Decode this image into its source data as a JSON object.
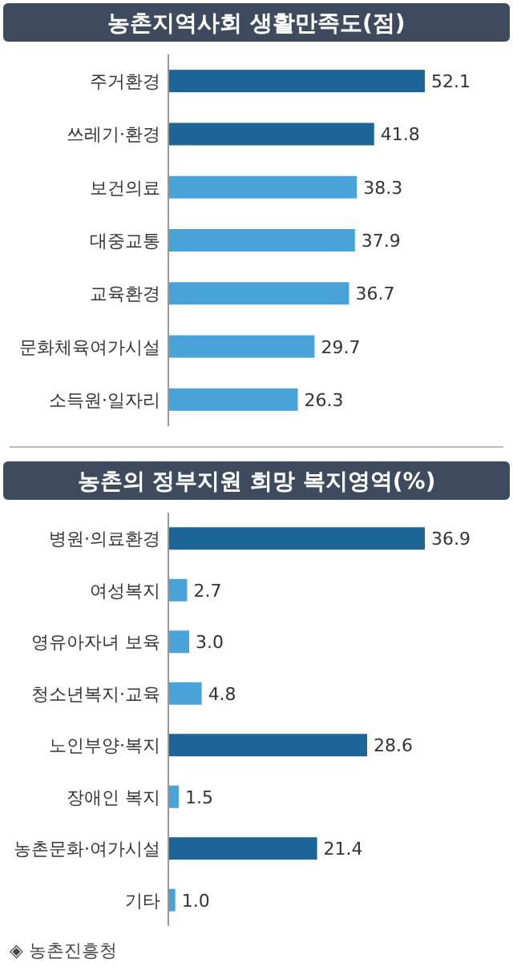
{
  "chart_data": [
    {
      "type": "bar",
      "orientation": "horizontal",
      "title": "농촌지역사회 생활만족도(점)",
      "categories": [
        "주거환경",
        "쓰레기·환경",
        "보건의료",
        "대중교통",
        "교육환경",
        "문화체육여가시설",
        "소득원·일자리"
      ],
      "values": [
        52.1,
        41.8,
        38.3,
        37.9,
        36.7,
        29.7,
        26.3
      ],
      "colors": [
        "#1d6596",
        "#1d6596",
        "#4aa3d8",
        "#4aa3d8",
        "#4aa3d8",
        "#4aa3d8",
        "#4aa3d8"
      ],
      "value_labels": [
        "52.1",
        "41.8",
        "38.3",
        "37.9",
        "36.7",
        "29.7",
        "26.3"
      ]
    },
    {
      "type": "bar",
      "orientation": "horizontal",
      "title": "농촌의 정부지원 희망 복지영역(%)",
      "categories": [
        "병원·의료환경",
        "여성복지",
        "영유아자녀 보육",
        "청소년복지·교육",
        "노인부양·복지",
        "장애인 복지",
        "농촌문화·여가시설",
        "기타"
      ],
      "values": [
        36.9,
        2.7,
        3.0,
        4.8,
        28.6,
        1.5,
        21.4,
        1.0
      ],
      "colors": [
        "#1d6596",
        "#4aa3d8",
        "#4aa3d8",
        "#4aa3d8",
        "#1d6596",
        "#4aa3d8",
        "#1d6596",
        "#4aa3d8"
      ],
      "value_labels": [
        "36.9",
        "2.7",
        "3.0",
        "4.8",
        "28.6",
        "1.5",
        "21.4",
        "1.0"
      ],
      "annotations": [
        "◈ 농촌진흥청"
      ]
    }
  ]
}
